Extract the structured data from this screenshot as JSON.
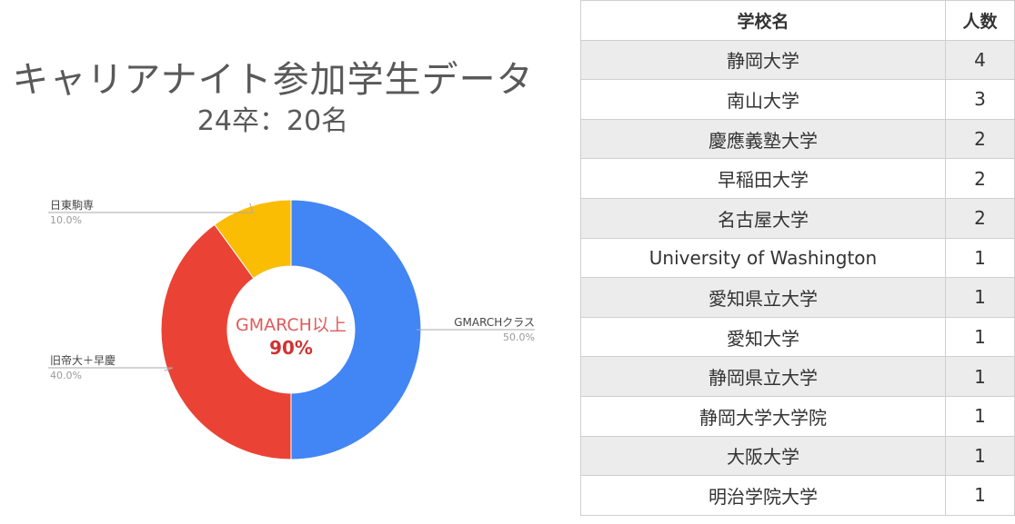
{
  "heading": {
    "title": "キャリアナイト参加学生データ",
    "subtitle": "24卒：20名"
  },
  "chart_data": {
    "type": "pie",
    "variant": "donut",
    "slices": [
      {
        "label": "GMARCHクラス",
        "value": 50.0,
        "pct_label": "50.0%",
        "color": "#4285f4"
      },
      {
        "label": "旧帝大＋早慶",
        "value": 40.0,
        "pct_label": "40.0%",
        "color": "#ea4335"
      },
      {
        "label": "日東駒専",
        "value": 10.0,
        "pct_label": "10.0%",
        "color": "#fbbc04"
      }
    ],
    "center_label": {
      "title": "GMARCH以上",
      "value": "90%"
    }
  },
  "table": {
    "headers": [
      "学校名",
      "人数"
    ],
    "rows": [
      [
        "静岡大学",
        "4"
      ],
      [
        "南山大学",
        "3"
      ],
      [
        "慶應義塾大学",
        "2"
      ],
      [
        "早稲田大学",
        "2"
      ],
      [
        "名古屋大学",
        "2"
      ],
      [
        "University of Washington",
        "1"
      ],
      [
        "愛知県立大学",
        "1"
      ],
      [
        "愛知大学",
        "1"
      ],
      [
        "静岡県立大学",
        "1"
      ],
      [
        "静岡大学大学院",
        "1"
      ],
      [
        "大阪大学",
        "1"
      ],
      [
        "明治学院大学",
        "1"
      ]
    ]
  }
}
